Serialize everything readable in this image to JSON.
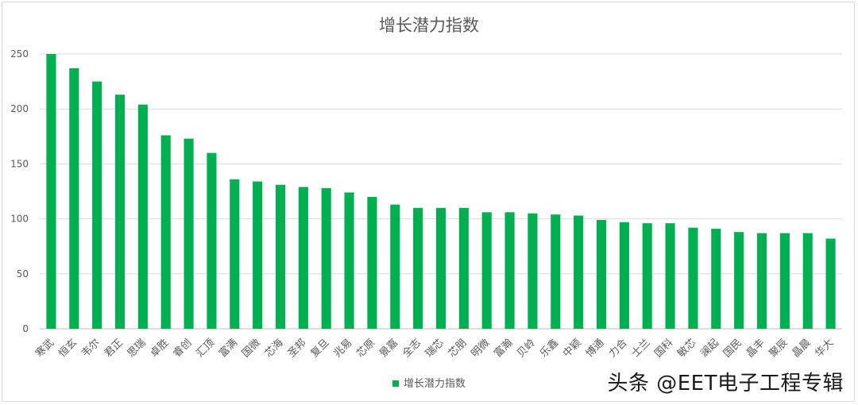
{
  "chart_data": {
    "type": "bar",
    "title": "增长潜力指数",
    "xlabel": "",
    "ylabel": "",
    "ylim": [
      0,
      250
    ],
    "yticks": [
      0,
      50,
      100,
      150,
      200,
      250
    ],
    "grid": true,
    "legend_position": "bottom",
    "bar_color": "#00b050",
    "categories": [
      "寒武",
      "恒玄",
      "韦尔",
      "君正",
      "思瑞",
      "卓胜",
      "睿创",
      "汇顶",
      "富满",
      "国微",
      "芯海",
      "圣邦",
      "复旦",
      "兆易",
      "芯原",
      "景嘉",
      "全志",
      "瑞芯",
      "芯朋",
      "明微",
      "富瀚",
      "贝岭",
      "乐鑫",
      "中颖",
      "博通",
      "力合",
      "士兰",
      "国科",
      "敏芯",
      "澜起",
      "国民",
      "晶丰",
      "聚辰",
      "晶晨",
      "华大"
    ],
    "series": [
      {
        "name": "增长潜力指数",
        "values": [
          250,
          237,
          225,
          213,
          204,
          176,
          173,
          160,
          136,
          134,
          131,
          129,
          128,
          124,
          120,
          113,
          110,
          110,
          110,
          106,
          106,
          105,
          104,
          103,
          99,
          97,
          96,
          96,
          92,
          91,
          88,
          87,
          87,
          87,
          82
        ]
      }
    ]
  },
  "watermark": "头条 @EET电子工程专辑"
}
